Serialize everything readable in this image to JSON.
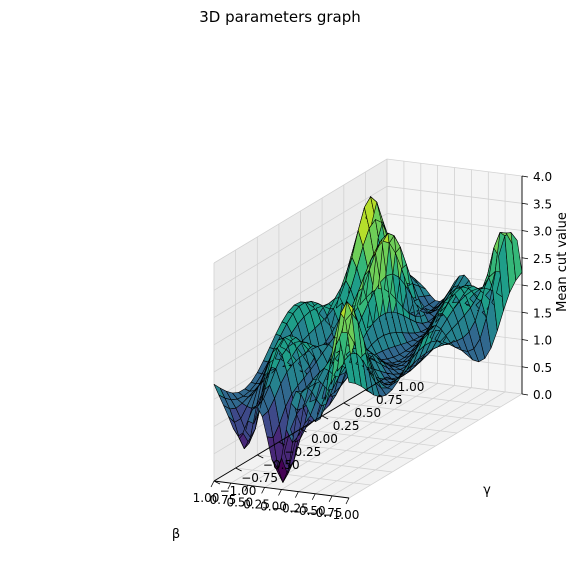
{
  "chart_data": {
    "type": "surface3d",
    "title": "3D parameters graph",
    "xlabel": "β",
    "ylabel": "γ",
    "zlabel": "Mean cut value",
    "xlim": [
      -1.0,
      1.0
    ],
    "ylim": [
      -1.0,
      1.0
    ],
    "zlim": [
      0.0,
      4.0
    ],
    "x_ticks": [
      "−1.00",
      "−0.75",
      "−0.50",
      "−0.25",
      "0.00",
      "0.25",
      "0.50",
      "0.75",
      "1.00"
    ],
    "y_ticks": [
      "−1.00",
      "−0.75",
      "−0.50",
      "−0.25",
      "0.00",
      "0.25",
      "0.50",
      "0.75",
      "1.00"
    ],
    "z_ticks": [
      "0.0",
      "0.5",
      "1.0",
      "1.5",
      "2.0",
      "2.5",
      "3.0",
      "3.5",
      "4.0"
    ],
    "colormap": "viridis",
    "edge_color": "#000000",
    "grid": true,
    "z_min": 0.0,
    "z_max": 4.0
  }
}
